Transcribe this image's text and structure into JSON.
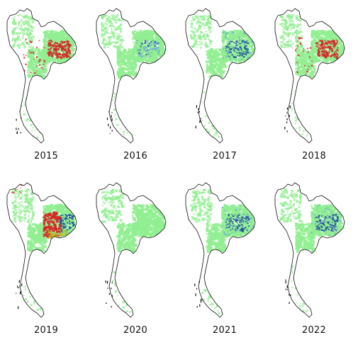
{
  "figure": {
    "colors": {
      "outline": "#111111",
      "cropland": "#90ee90",
      "drought_high": "#d62728",
      "drought_mid": "#bcbd22",
      "wet": "#1f4e9c",
      "wet_light": "#6fa8dc"
    },
    "panels": [
      {
        "year": "2015",
        "pattern": "red-northeast"
      },
      {
        "year": "2016",
        "pattern": "light-blue-northeast"
      },
      {
        "year": "2017",
        "pattern": "blue-northeast"
      },
      {
        "year": "2018",
        "pattern": "red-northeast"
      },
      {
        "year": "2019",
        "pattern": "red-center-blue-east"
      },
      {
        "year": "2020",
        "pattern": "green-only"
      },
      {
        "year": "2021",
        "pattern": "blue-northeast"
      },
      {
        "year": "2022",
        "pattern": "blue-northeast"
      }
    ]
  }
}
